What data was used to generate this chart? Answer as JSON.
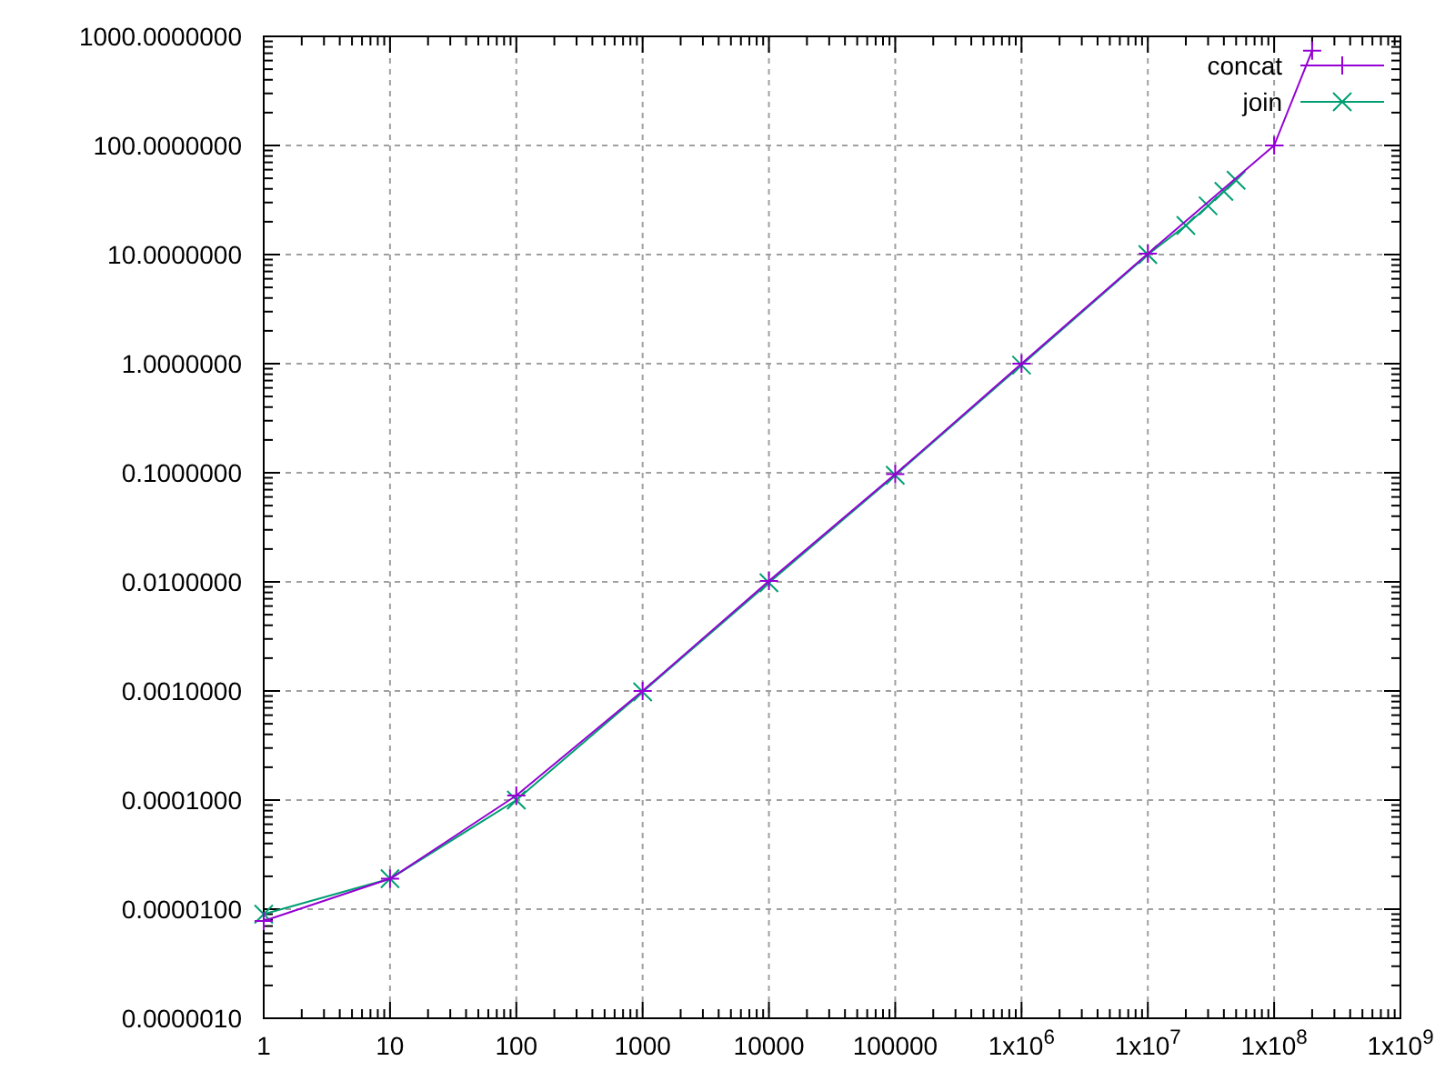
{
  "chart_data": {
    "type": "line",
    "log": "xy",
    "grid": true,
    "legend": "top right",
    "marker": "cross",
    "xlim": [
      1,
      1000000000
    ],
    "ylim": [
      1e-06,
      1000
    ],
    "xticks": [
      1,
      10,
      100,
      1000,
      10000,
      100000,
      {
        "value": 1000000,
        "label": "1x10$^{6}$"
      },
      {
        "value": 10000000,
        "label": "1x10$^{7}$"
      },
      {
        "value": 100000000,
        "label": "1x10$^{8}$"
      },
      {
        "value": 1000000000,
        "label": "1x10$^{9}$"
      }
    ],
    "yticks": [
      {
        "value": 1e-06,
        "label": "0.0000010"
      },
      {
        "value": 1e-05,
        "label": "0.0000100"
      },
      {
        "value": 0.0001,
        "label": "0.0001000"
      },
      {
        "value": 0.001,
        "label": "0.0010000"
      },
      {
        "value": 0.01,
        "label": "0.0100000"
      },
      {
        "value": 0.1,
        "label": "0.1000000"
      },
      {
        "value": 1,
        "label": "1.0000000"
      },
      {
        "value": 10,
        "label": "10.0000000"
      },
      {
        "value": 100,
        "label": "100.0000000"
      },
      {
        "value": 1000,
        "label": "1000.0000000"
      }
    ],
    "series": [
      {
        "name": "concat",
        "color": "#9400d3",
        "x": [
          1,
          10,
          100,
          1000,
          10000,
          100000,
          1000000,
          10000000,
          100000000,
          200000000
        ],
        "values": [
          7.8e-06,
          1.9e-05,
          0.00011,
          0.001,
          0.0102,
          0.097,
          1.0,
          10.2,
          100,
          740
        ]
      },
      {
        "name": "join",
        "color": "#009e73",
        "x": [
          1,
          10,
          100,
          1000,
          10000,
          100000,
          1000000,
          10000000,
          20000000,
          30000000,
          40000000,
          50000000
        ],
        "values": [
          9e-06,
          1.9e-05,
          0.0001,
          0.00098,
          0.0098,
          0.095,
          0.97,
          10,
          18.5,
          28,
          38,
          48
        ]
      }
    ]
  }
}
